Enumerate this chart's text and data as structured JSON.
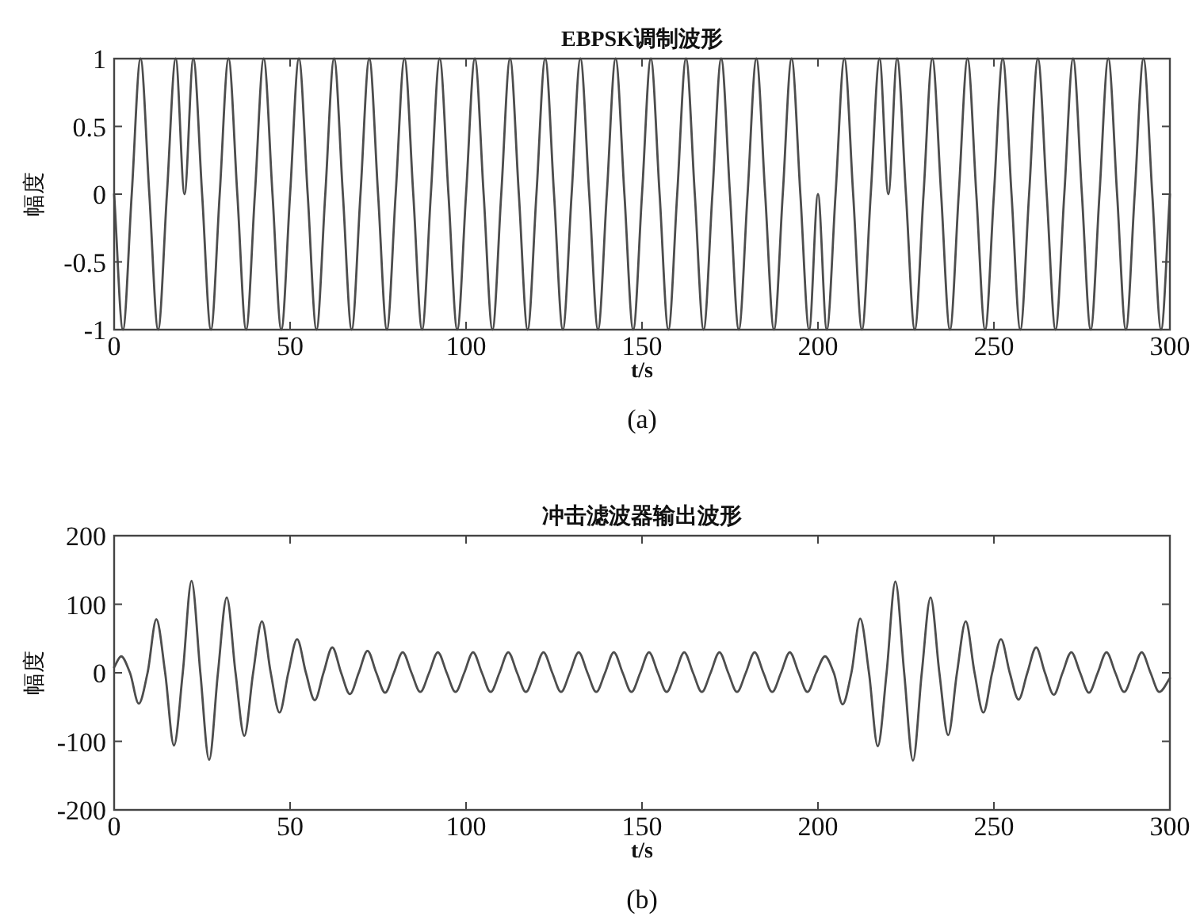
{
  "chart_data": [
    {
      "type": "line",
      "title": "EBPSK调制波形",
      "xlabel": "t/s",
      "ylabel": "幅度",
      "color": "#4d4d4d",
      "xlim": [
        0,
        300
      ],
      "ylim": [
        -1,
        1
      ],
      "xticks": [
        0,
        50,
        100,
        150,
        200,
        250,
        300
      ],
      "yticks": [
        -1,
        -0.5,
        0,
        0.5,
        1
      ],
      "annotations": [
        "(a)"
      ],
      "x": [
        0,
        2.5,
        5,
        7.5,
        10,
        12.5,
        15,
        17.5,
        20,
        22.5,
        25,
        27.5,
        30,
        32.5,
        35,
        37.5,
        40,
        42.5,
        45,
        47.5,
        50,
        52.5,
        55,
        57.5,
        60,
        62.5,
        65,
        67.5,
        70,
        72.5,
        75,
        77.5,
        80,
        82.5,
        85,
        87.5,
        90,
        92.5,
        95,
        97.5,
        100,
        102.5,
        105,
        107.5,
        110,
        112.5,
        115,
        117.5,
        120,
        122.5,
        125,
        127.5,
        130,
        132.5,
        135,
        137.5,
        140,
        142.5,
        145,
        147.5,
        150,
        152.5,
        155,
        157.5,
        160,
        162.5,
        165,
        167.5,
        170,
        172.5,
        175,
        177.5,
        180,
        182.5,
        185,
        187.5,
        190,
        192.5,
        195,
        197.5,
        200,
        202.5,
        205,
        207.5,
        210,
        212.5,
        215,
        217.5,
        220,
        222.5,
        225,
        227.5,
        230,
        232.5,
        235,
        237.5,
        240,
        242.5,
        245,
        247.5,
        250,
        252.5,
        255,
        257.5,
        260,
        262.5,
        265,
        267.5,
        270,
        272.5,
        275,
        277.5,
        280,
        282.5,
        285,
        287.5,
        290,
        292.5,
        295,
        297.5,
        300
      ],
      "values": [
        0,
        -1,
        0,
        1,
        0,
        -1,
        0,
        1,
        0,
        1,
        0,
        -1,
        0,
        1,
        0,
        -1,
        0,
        1,
        0,
        -1,
        0,
        1,
        0,
        -1,
        0,
        1,
        0,
        -1,
        0,
        1,
        0,
        -1,
        0,
        1,
        0,
        -1,
        0,
        1,
        0,
        -1,
        0,
        1,
        0,
        -1,
        0,
        1,
        0,
        -1,
        0,
        1,
        0,
        -1,
        0,
        1,
        0,
        -1,
        0,
        1,
        0,
        -1,
        0,
        1,
        0,
        -1,
        0,
        1,
        0,
        -1,
        0,
        1,
        0,
        -1,
        0,
        1,
        0,
        -1,
        0,
        1,
        0,
        -1,
        0,
        -1,
        0,
        1,
        0,
        -1,
        0,
        1,
        0,
        1,
        0,
        -1,
        0,
        1,
        0,
        -1,
        0,
        1,
        0,
        -1,
        0,
        1,
        0,
        -1,
        0,
        1,
        0,
        -1,
        0,
        1,
        0,
        -1,
        0,
        1,
        0,
        -1,
        0,
        1,
        0,
        -1,
        0
      ]
    },
    {
      "type": "line",
      "title": "冲击滤波器输出波形",
      "xlabel": "t/s",
      "ylabel": "幅度",
      "color": "#4d4d4d",
      "xlim": [
        0,
        300
      ],
      "ylim": [
        -200,
        200
      ],
      "xticks": [
        0,
        50,
        100,
        150,
        200,
        250,
        300
      ],
      "yticks": [
        -200,
        -100,
        0,
        100,
        200
      ],
      "annotations": [
        "(b)"
      ],
      "x": [
        0,
        2,
        4.5,
        7,
        9.5,
        12,
        14.5,
        17,
        19.5,
        22,
        24.5,
        27,
        29.5,
        32,
        34.5,
        37,
        39.5,
        42,
        44.5,
        47,
        49.5,
        52,
        54.5,
        57,
        59.5,
        62,
        64.5,
        67,
        69.5,
        72,
        74.5,
        77,
        79.5,
        82,
        84.5,
        87,
        89.5,
        92,
        94.5,
        97,
        99.5,
        102,
        104.5,
        107,
        109.5,
        112,
        114.5,
        117,
        119.5,
        122,
        124.5,
        127,
        129.5,
        132,
        134.5,
        137,
        139.5,
        142,
        144.5,
        147,
        149.5,
        152,
        154.5,
        157,
        159.5,
        162,
        164.5,
        167,
        169.5,
        172,
        174.5,
        177,
        179.5,
        182,
        184.5,
        187,
        189.5,
        192,
        194.5,
        197,
        199.5,
        202,
        204.5,
        207,
        209.5,
        212,
        214.5,
        217,
        219.5,
        222,
        224.5,
        227,
        229.5,
        232,
        234.5,
        237,
        239.5,
        242,
        244.5,
        247,
        249.5,
        252,
        254.5,
        257,
        259.5,
        262,
        264.5,
        267,
        269.5,
        272,
        274.5,
        277,
        279.5,
        282,
        284.5,
        287,
        289.5,
        292,
        294.5,
        297,
        300
      ],
      "values": [
        8,
        24,
        0,
        -45,
        0,
        78,
        0,
        -106,
        0,
        134,
        0,
        -127,
        0,
        110,
        0,
        -92,
        0,
        75,
        0,
        -58,
        0,
        49,
        0,
        -40,
        0,
        37,
        0,
        -31,
        0,
        32,
        0,
        -29,
        0,
        30,
        0,
        -28,
        0,
        30,
        0,
        -28,
        0,
        30,
        0,
        -28,
        0,
        30,
        0,
        -28,
        0,
        30,
        0,
        -28,
        0,
        30,
        0,
        -28,
        0,
        30,
        0,
        -28,
        0,
        30,
        0,
        -28,
        0,
        30,
        0,
        -28,
        0,
        30,
        0,
        -28,
        0,
        30,
        0,
        -28,
        0,
        30,
        0,
        -28,
        0,
        24,
        0,
        -46,
        0,
        79,
        0,
        -107,
        0,
        133,
        0,
        -128,
        0,
        110,
        0,
        -91,
        0,
        75,
        0,
        -58,
        0,
        49,
        0,
        -39,
        0,
        37,
        0,
        -32,
        0,
        30,
        0,
        -29,
        0,
        30,
        0,
        -28,
        0,
        30,
        0,
        -28,
        -8
      ]
    }
  ]
}
